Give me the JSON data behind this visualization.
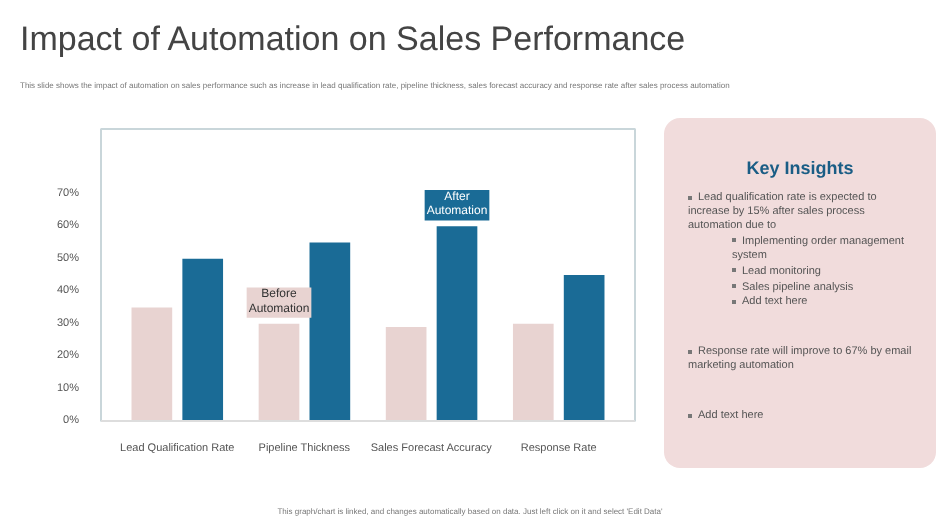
{
  "chart_data": [
    {
      "type": "bar",
      "title": "Impact of Automation on Sales Performance",
      "subtitle": "This slide shows the impact of automation on sales performance such as increase in lead qualification rate, pipeline thickness, sales forecast accuracy and response rate after sales process automation",
      "categories": [
        "Lead Qualification Rate",
        "Pipeline Thickness",
        "Sales Forecast Accuracy",
        "Response Rate"
      ],
      "series": [
        {
          "name": "Before Automation",
          "color": "#e8d3d1",
          "values": [
            35,
            30,
            29,
            30
          ]
        },
        {
          "name": "After Automation",
          "color": "#1a6b96",
          "values": [
            50,
            55,
            60,
            45
          ]
        }
      ],
      "ylim": [
        0,
        90
      ],
      "yticks": [
        {
          "value": 0,
          "label": "0%"
        },
        {
          "value": 10,
          "label": "10%"
        },
        {
          "value": 20,
          "label": "20%"
        },
        {
          "value": 30,
          "label": "30%"
        },
        {
          "value": 40,
          "label": "40%"
        },
        {
          "value": 50,
          "label": "50%"
        },
        {
          "value": 60,
          "label": "60%"
        },
        {
          "value": 70,
          "label": "70%"
        }
      ],
      "grid": false,
      "annotations": [
        "This graph/chart is linked, and changes automatically based on data. Just left click on it and select 'Edit Data'"
      ]
    },
    {
      "type": "other",
      "title": "Key Insights",
      "annotations": [
        "Lead qualification rate is expected to increase by 15% after sales process automation due to",
        "Implementing order management system",
        "Lead monitoring",
        "Sales pipeline analysis",
        "Add text here",
        "Response rate will improve to 67% by email marketing automation",
        "Add text here"
      ]
    }
  ]
}
